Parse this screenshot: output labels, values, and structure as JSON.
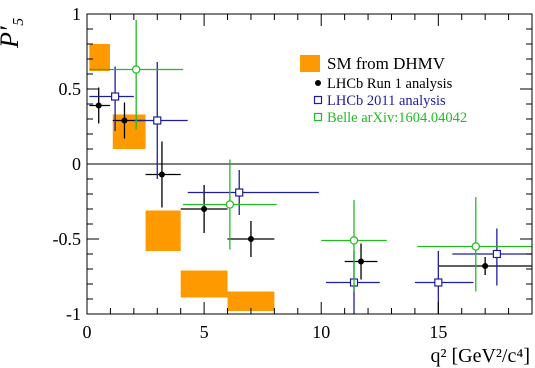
{
  "chart_data": {
    "type": "scatter",
    "title": "",
    "xlabel": "q² [GeV²/c⁴]",
    "ylabel": "P′₅",
    "xlim": [
      0,
      19
    ],
    "ylim": [
      -1,
      1
    ],
    "x_ticks": [
      0,
      5,
      10,
      15
    ],
    "y_ticks": [
      -1,
      -0.5,
      0,
      0.5,
      1
    ],
    "x_tick_labels": [
      "0",
      "5",
      "10",
      "15"
    ],
    "y_tick_labels": [
      "-1",
      "-0.5",
      "0",
      "0.5",
      "1"
    ],
    "grid": false,
    "legend_position": "top-right",
    "reference_line_y": 0,
    "sm_prediction": {
      "name": "SM from DHMV",
      "color": "#ff9900",
      "boxes": [
        {
          "x_low": 0.1,
          "x_high": 0.98,
          "y_low": 0.62,
          "y_high": 0.8
        },
        {
          "x_low": 1.1,
          "x_high": 2.5,
          "y_low": 0.1,
          "y_high": 0.33
        },
        {
          "x_low": 2.5,
          "x_high": 4.0,
          "y_low": -0.58,
          "y_high": -0.31
        },
        {
          "x_low": 4.0,
          "x_high": 6.0,
          "y_low": -0.89,
          "y_high": -0.71
        },
        {
          "x_low": 6.0,
          "x_high": 8.0,
          "y_low": -0.98,
          "y_high": -0.85
        }
      ]
    },
    "series": [
      {
        "name": "LHCb Run 1 analysis",
        "color": "#000000",
        "marker": "filled-circle",
        "points": [
          {
            "x": 0.5,
            "xerr_low": 0.4,
            "xerr_high": 0.48,
            "y": 0.39,
            "yerr_low": 0.12,
            "yerr_high": 0.12
          },
          {
            "x": 1.6,
            "xerr_low": 0.5,
            "xerr_high": 0.9,
            "y": 0.29,
            "yerr_low": 0.12,
            "yerr_high": 0.12
          },
          {
            "x": 3.2,
            "xerr_low": 0.7,
            "xerr_high": 0.8,
            "y": -0.07,
            "yerr_low": 0.22,
            "yerr_high": 0.22
          },
          {
            "x": 5.0,
            "xerr_low": 1.0,
            "xerr_high": 1.0,
            "y": -0.3,
            "yerr_low": 0.16,
            "yerr_high": 0.16
          },
          {
            "x": 7.0,
            "xerr_low": 1.0,
            "xerr_high": 1.0,
            "y": -0.5,
            "yerr_low": 0.12,
            "yerr_high": 0.12
          },
          {
            "x": 11.7,
            "xerr_low": 0.7,
            "xerr_high": 0.7,
            "y": -0.65,
            "yerr_low": 0.12,
            "yerr_high": 0.12
          },
          {
            "x": 17.0,
            "xerr_low": 2.0,
            "xerr_high": 2.0,
            "y": -0.68,
            "yerr_low": 0.06,
            "yerr_high": 0.06
          }
        ]
      },
      {
        "name": "LHCb 2011 analysis",
        "color": "#1e1ea0",
        "marker": "open-square",
        "points": [
          {
            "x": 1.2,
            "xerr_low": 1.1,
            "xerr_high": 0.8,
            "y": 0.45,
            "yerr_low": 0.23,
            "yerr_high": 0.2
          },
          {
            "x": 3.0,
            "xerr_low": 1.0,
            "xerr_high": 1.3,
            "y": 0.29,
            "yerr_low": 0.39,
            "yerr_high": 0.39
          },
          {
            "x": 6.5,
            "xerr_low": 2.2,
            "xerr_high": 3.4,
            "y": -0.19,
            "yerr_low": 0.15,
            "yerr_high": 0.15
          },
          {
            "x": 11.4,
            "xerr_low": 1.2,
            "xerr_high": 1.1,
            "y": -0.79,
            "yerr_low": 0.21,
            "yerr_high": 0.21
          },
          {
            "x": 15.0,
            "xerr_low": 1.0,
            "xerr_high": 1.5,
            "y": -0.79,
            "yerr_low": 0.21,
            "yerr_high": 0.21
          },
          {
            "x": 17.5,
            "xerr_low": 1.9,
            "xerr_high": 1.5,
            "y": -0.6,
            "yerr_low": 0.21,
            "yerr_high": 0.17
          }
        ]
      },
      {
        "name": "Belle arXiv:1604.04042",
        "color": "#22bb22",
        "marker": "open-circle",
        "points": [
          {
            "x": 2.1,
            "xerr_low": 2.0,
            "xerr_high": 2.0,
            "y": 0.63,
            "yerr_low": 0.4,
            "yerr_high": 0.33
          },
          {
            "x": 6.1,
            "xerr_low": 2.0,
            "xerr_high": 2.0,
            "y": -0.27,
            "yerr_low": 0.3,
            "yerr_high": 0.3
          },
          {
            "x": 11.4,
            "xerr_low": 1.4,
            "xerr_high": 1.4,
            "y": -0.51,
            "yerr_low": 0.34,
            "yerr_high": 0.27
          },
          {
            "x": 16.6,
            "xerr_low": 2.5,
            "xerr_high": 2.4,
            "y": -0.55,
            "yerr_low": 0.3,
            "yerr_high": 0.33
          }
        ]
      }
    ]
  }
}
